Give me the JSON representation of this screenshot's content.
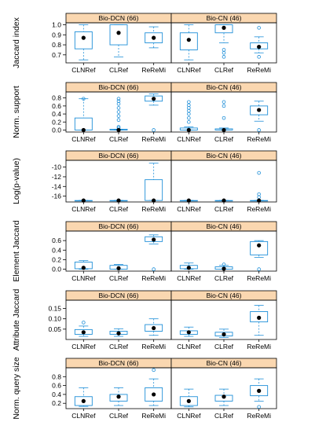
{
  "colors": {
    "box": "#1f8fd8",
    "strip": "#fad7b0",
    "frame": "#000000",
    "median": "#000000"
  },
  "chart_data": [
    {
      "type": "boxplot",
      "ylabel": "Jaccard index",
      "ylim": [
        0.62,
        1.02
      ],
      "yticks": [
        0.7,
        0.8,
        0.9,
        1.0
      ],
      "ytick_labels": [
        "0.7",
        "0.8",
        "0.9",
        "1.0"
      ],
      "panels": [
        {
          "strip": "Bio-DCN (66)",
          "boxes": [
            {
              "category": "CLNRef",
              "wlo": 0.65,
              "q1": 0.76,
              "q3": 0.93,
              "whi": 1.0,
              "point": 0.87,
              "outliers": []
            },
            {
              "category": "CLRef",
              "wlo": 0.68,
              "q1": 0.8,
              "q3": 1.0,
              "whi": 1.0,
              "point": 0.92,
              "outliers": []
            },
            {
              "category": "ReReMi",
              "wlo": 0.77,
              "q1": 0.82,
              "q3": 0.92,
              "whi": 0.98,
              "point": 0.87,
              "outliers": []
            }
          ]
        },
        {
          "strip": "Bio-CN (46)",
          "boxes": [
            {
              "category": "CLNRef",
              "wlo": 0.65,
              "q1": 0.75,
              "q3": 0.92,
              "whi": 1.0,
              "point": 0.85,
              "outliers": []
            },
            {
              "category": "CLRef",
              "wlo": 0.82,
              "q1": 0.92,
              "q3": 1.0,
              "whi": 1.0,
              "point": 0.97,
              "outliers": [
                0.68,
                0.72,
                0.75
              ]
            },
            {
              "category": "ReReMi",
              "wlo": 0.72,
              "q1": 0.76,
              "q3": 0.82,
              "whi": 0.88,
              "point": 0.78,
              "outliers": [
                0.68,
                0.97
              ]
            }
          ]
        }
      ]
    },
    {
      "type": "boxplot",
      "ylabel": "Norm. support",
      "ylim": [
        -0.05,
        0.95
      ],
      "yticks": [
        0.0,
        0.2,
        0.4,
        0.6,
        0.8
      ],
      "ytick_labels": [
        "0.0",
        "0.2",
        "0.4",
        "0.6",
        "0.8"
      ],
      "panels": [
        {
          "strip": "Bio-DCN (66)",
          "boxes": [
            {
              "category": "CLNRef",
              "wlo": 0.0,
              "q1": 0.0,
              "q3": 0.3,
              "whi": 0.78,
              "point": 0.0,
              "outliers": [
                0.78
              ]
            },
            {
              "category": "CLRef",
              "wlo": 0.0,
              "q1": 0.0,
              "q3": 0.02,
              "whi": 0.02,
              "point": 0.0,
              "outliers": [
                0.05,
                0.08,
                0.25,
                0.35,
                0.45,
                0.55,
                0.65,
                0.72,
                0.78
              ]
            },
            {
              "category": "ReReMi",
              "wlo": 0.62,
              "q1": 0.72,
              "q3": 0.85,
              "whi": 0.9,
              "point": 0.78,
              "outliers": [
                0.0
              ]
            }
          ]
        },
        {
          "strip": "Bio-CN (46)",
          "boxes": [
            {
              "category": "CLNRef",
              "wlo": 0.0,
              "q1": 0.0,
              "q3": 0.05,
              "whi": 0.08,
              "point": 0.0,
              "outliers": [
                0.2,
                0.3,
                0.4,
                0.48,
                0.55,
                0.62,
                0.7
              ]
            },
            {
              "category": "CLRef",
              "wlo": 0.0,
              "q1": 0.0,
              "q3": 0.03,
              "whi": 0.05,
              "point": 0.0,
              "outliers": [
                0.3,
                0.6,
                0.7
              ]
            },
            {
              "category": "ReReMi",
              "wlo": 0.22,
              "q1": 0.38,
              "q3": 0.6,
              "whi": 0.72,
              "point": 0.5,
              "outliers": [
                0.0
              ]
            }
          ]
        }
      ]
    },
    {
      "type": "boxplot",
      "ylabel": "Log(p-value)",
      "ylim": [
        -17.2,
        -8.6
      ],
      "yticks": [
        -16,
        -14,
        -12,
        -10
      ],
      "ytick_labels": [
        "-16",
        "-14",
        "-12",
        "-10"
      ],
      "panels": [
        {
          "strip": "Bio-DCN (66)",
          "boxes": [
            {
              "category": "CLNRef",
              "wlo": -16.9,
              "q1": -16.9,
              "q3": -16.9,
              "whi": -16.9,
              "point": -16.9,
              "outliers": []
            },
            {
              "category": "CLRef",
              "wlo": -16.9,
              "q1": -16.9,
              "q3": -16.9,
              "whi": -16.9,
              "point": -16.9,
              "outliers": []
            },
            {
              "category": "ReReMi",
              "wlo": -16.9,
              "q1": -16.9,
              "q3": -12.6,
              "whi": -9.2,
              "point": -16.9,
              "outliers": []
            }
          ]
        },
        {
          "strip": "Bio-CN (46)",
          "boxes": [
            {
              "category": "CLNRef",
              "wlo": -16.9,
              "q1": -16.9,
              "q3": -16.9,
              "whi": -16.9,
              "point": -16.9,
              "outliers": []
            },
            {
              "category": "CLRef",
              "wlo": -16.9,
              "q1": -16.9,
              "q3": -16.9,
              "whi": -16.9,
              "point": -16.9,
              "outliers": []
            },
            {
              "category": "ReReMi",
              "wlo": -16.9,
              "q1": -16.9,
              "q3": -16.9,
              "whi": -16.9,
              "point": -16.9,
              "outliers": [
                -11.2,
                -15.6,
                -16.2
              ]
            }
          ]
        }
      ]
    },
    {
      "type": "boxplot",
      "ylabel": "Element Jaccard",
      "ylim": [
        -0.04,
        0.8
      ],
      "yticks": [
        0.0,
        0.2,
        0.4,
        0.6
      ],
      "ytick_labels": [
        "0.0",
        "0.2",
        "0.4",
        "0.6"
      ],
      "panels": [
        {
          "strip": "Bio-DCN (66)",
          "boxes": [
            {
              "category": "CLNRef",
              "wlo": 0.0,
              "q1": 0.01,
              "q3": 0.15,
              "whi": 0.18,
              "point": 0.03,
              "outliers": []
            },
            {
              "category": "CLRef",
              "wlo": 0.0,
              "q1": 0.0,
              "q3": 0.08,
              "whi": 0.1,
              "point": 0.02,
              "outliers": []
            },
            {
              "category": "ReReMi",
              "wlo": 0.53,
              "q1": 0.58,
              "q3": 0.68,
              "whi": 0.72,
              "point": 0.62,
              "outliers": [
                0.0
              ]
            }
          ]
        },
        {
          "strip": "Bio-CN (46)",
          "boxes": [
            {
              "category": "CLNRef",
              "wlo": 0.0,
              "q1": 0.01,
              "q3": 0.08,
              "whi": 0.13,
              "point": 0.03,
              "outliers": []
            },
            {
              "category": "CLRef",
              "wlo": 0.0,
              "q1": 0.0,
              "q3": 0.05,
              "whi": 0.08,
              "point": 0.01,
              "outliers": [
                0.1
              ]
            },
            {
              "category": "ReReMi",
              "wlo": 0.25,
              "q1": 0.3,
              "q3": 0.58,
              "whi": 0.6,
              "point": 0.5,
              "outliers": [
                0.0
              ]
            }
          ]
        }
      ]
    },
    {
      "type": "boxplot",
      "ylabel": "Attribute Jaccard",
      "ylim": [
        0.0,
        0.19
      ],
      "yticks": [
        0.05,
        0.1,
        0.15
      ],
      "ytick_labels": [
        "0.05",
        "0.10",
        "0.15"
      ],
      "panels": [
        {
          "strip": "Bio-DCN (66)",
          "boxes": [
            {
              "category": "CLNRef",
              "wlo": 0.015,
              "q1": 0.025,
              "q3": 0.048,
              "whi": 0.065,
              "point": 0.035,
              "outliers": [
                0.082
              ]
            },
            {
              "category": "CLRef",
              "wlo": 0.015,
              "q1": 0.025,
              "q3": 0.04,
              "whi": 0.052,
              "point": 0.03,
              "outliers": []
            },
            {
              "category": "ReReMi",
              "wlo": 0.02,
              "q1": 0.04,
              "q3": 0.072,
              "whi": 0.1,
              "point": 0.055,
              "outliers": []
            }
          ]
        },
        {
          "strip": "Bio-CN (46)",
          "boxes": [
            {
              "category": "CLNRef",
              "wlo": 0.015,
              "q1": 0.025,
              "q3": 0.042,
              "whi": 0.06,
              "point": 0.035,
              "outliers": []
            },
            {
              "category": "CLRef",
              "wlo": 0.01,
              "q1": 0.017,
              "q3": 0.035,
              "whi": 0.05,
              "point": 0.025,
              "outliers": []
            },
            {
              "category": "ReReMi",
              "wlo": 0.02,
              "q1": 0.085,
              "q3": 0.135,
              "whi": 0.165,
              "point": 0.105,
              "outliers": []
            }
          ]
        }
      ]
    },
    {
      "type": "boxplot",
      "ylabel": "Norm. query size",
      "ylim": [
        0.08,
        1.0
      ],
      "yticks": [
        0.2,
        0.4,
        0.6,
        0.8
      ],
      "ytick_labels": [
        "0.2",
        "0.4",
        "0.6",
        "0.8"
      ],
      "panels": [
        {
          "strip": "Bio-DCN (66)",
          "boxes": [
            {
              "category": "CLNRef",
              "wlo": 0.13,
              "q1": 0.15,
              "q3": 0.35,
              "whi": 0.55,
              "point": 0.25,
              "outliers": []
            },
            {
              "category": "CLRef",
              "wlo": 0.15,
              "q1": 0.25,
              "q3": 0.4,
              "whi": 0.55,
              "point": 0.35,
              "outliers": []
            },
            {
              "category": "ReReMi",
              "wlo": 0.15,
              "q1": 0.25,
              "q3": 0.55,
              "whi": 0.75,
              "point": 0.4,
              "outliers": [
                0.95
              ]
            }
          ]
        },
        {
          "strip": "Bio-CN (46)",
          "boxes": [
            {
              "category": "CLNRef",
              "wlo": 0.12,
              "q1": 0.15,
              "q3": 0.35,
              "whi": 0.52,
              "point": 0.25,
              "outliers": []
            },
            {
              "category": "CLRef",
              "wlo": 0.15,
              "q1": 0.25,
              "q3": 0.38,
              "whi": 0.52,
              "point": 0.35,
              "outliers": []
            },
            {
              "category": "ReReMi",
              "wlo": 0.25,
              "q1": 0.37,
              "q3": 0.6,
              "whi": 0.75,
              "point": 0.48,
              "outliers": [
                0.12
              ]
            }
          ]
        }
      ]
    }
  ]
}
